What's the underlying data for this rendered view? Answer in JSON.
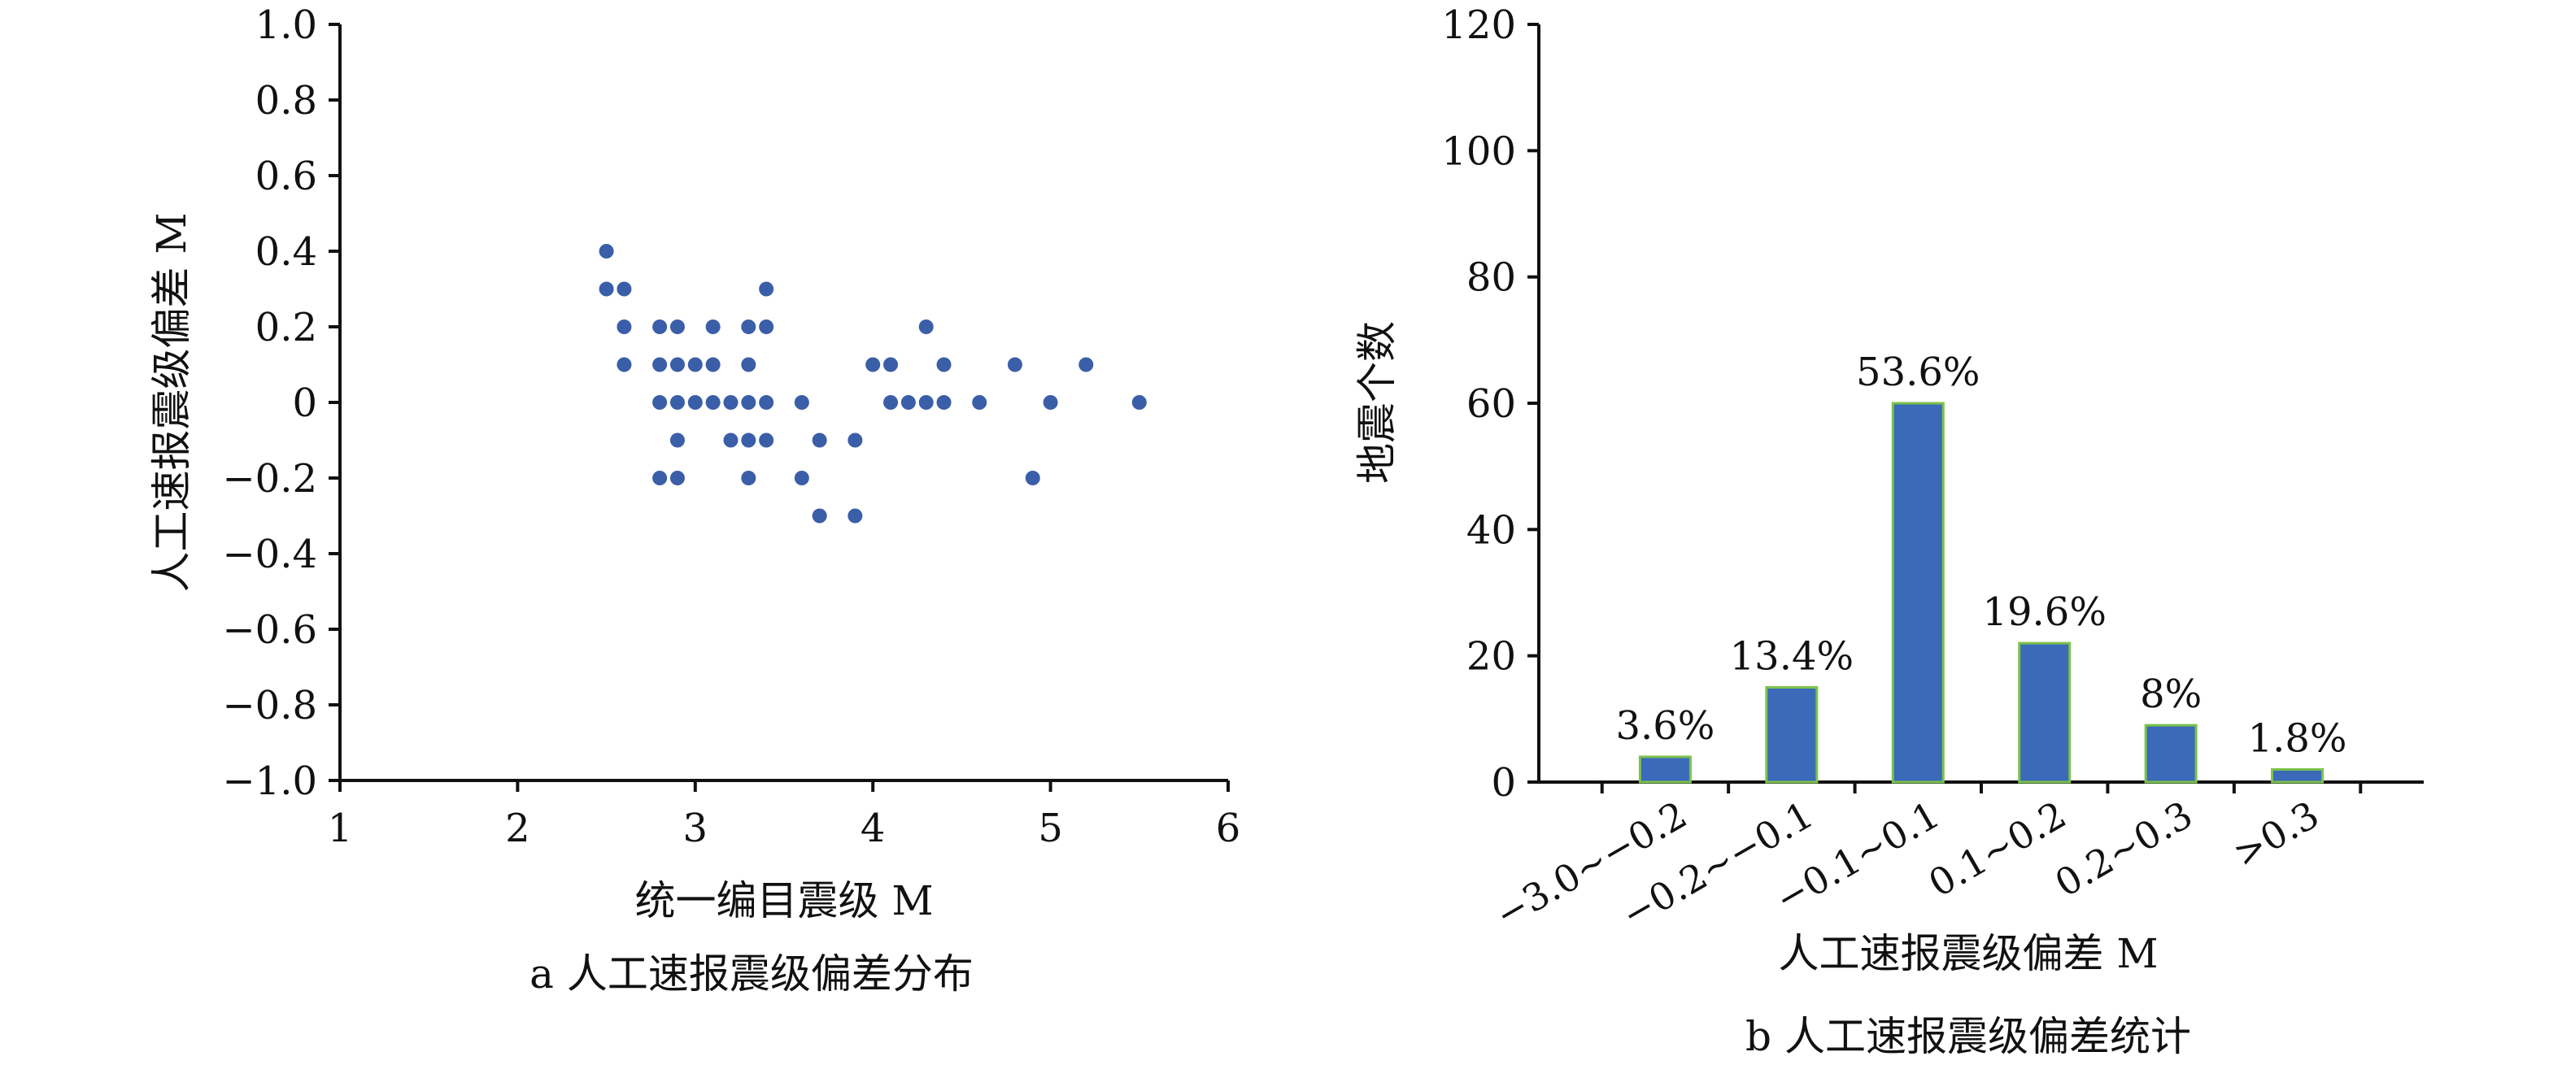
{
  "chart_data": [
    {
      "type": "scatter",
      "title": "",
      "caption": "a 人工速报震级偏差分布",
      "xlabel": "统一编目震级 M",
      "ylabel": "人工速报震级偏差 M",
      "xlim": [
        1,
        6
      ],
      "ylim": [
        -1.0,
        1.0
      ],
      "x_ticks": [
        "1",
        "2",
        "3",
        "4",
        "5",
        "6"
      ],
      "y_ticks": [
        "−1.0",
        "−0.8",
        "−0.6",
        "−0.4",
        "−0.2",
        "0",
        "0.2",
        "0.4",
        "0.6",
        "0.8",
        "1.0"
      ],
      "grid": false,
      "marker_color": "#3b5ea8",
      "points": [
        [
          2.5,
          0.4
        ],
        [
          2.5,
          0.3
        ],
        [
          2.6,
          0.3
        ],
        [
          2.6,
          0.2
        ],
        [
          2.6,
          0.1
        ],
        [
          2.8,
          0.2
        ],
        [
          2.8,
          0.1
        ],
        [
          2.8,
          0.0
        ],
        [
          2.8,
          -0.2
        ],
        [
          2.9,
          0.2
        ],
        [
          2.9,
          0.1
        ],
        [
          2.9,
          0.0
        ],
        [
          2.9,
          -0.1
        ],
        [
          2.9,
          -0.2
        ],
        [
          3.0,
          0.1
        ],
        [
          3.0,
          0.0
        ],
        [
          3.1,
          0.2
        ],
        [
          3.1,
          0.1
        ],
        [
          3.1,
          0.0
        ],
        [
          3.2,
          0.0
        ],
        [
          3.2,
          -0.1
        ],
        [
          3.3,
          0.2
        ],
        [
          3.3,
          0.1
        ],
        [
          3.3,
          0.0
        ],
        [
          3.3,
          -0.1
        ],
        [
          3.3,
          -0.2
        ],
        [
          3.4,
          0.3
        ],
        [
          3.4,
          0.2
        ],
        [
          3.4,
          0.0
        ],
        [
          3.4,
          -0.1
        ],
        [
          3.6,
          0.0
        ],
        [
          3.6,
          -0.2
        ],
        [
          3.7,
          -0.1
        ],
        [
          3.7,
          -0.3
        ],
        [
          3.9,
          -0.1
        ],
        [
          3.9,
          -0.3
        ],
        [
          4.0,
          0.1
        ],
        [
          4.1,
          0.1
        ],
        [
          4.1,
          0.0
        ],
        [
          4.2,
          0.0
        ],
        [
          4.3,
          0.2
        ],
        [
          4.3,
          0.0
        ],
        [
          4.4,
          0.1
        ],
        [
          4.4,
          0.0
        ],
        [
          4.6,
          0.0
        ],
        [
          4.8,
          0.1
        ],
        [
          4.9,
          -0.2
        ],
        [
          5.0,
          0.0
        ],
        [
          5.2,
          0.1
        ],
        [
          5.5,
          0.0
        ]
      ]
    },
    {
      "type": "bar",
      "title": "",
      "caption": "b 人工速报震级偏差统计",
      "xlabel": "人工速报震级偏差 M",
      "ylabel": "地震个数",
      "ylim": [
        0,
        120
      ],
      "y_ticks": [
        "0",
        "20",
        "40",
        "60",
        "80",
        "100",
        "120"
      ],
      "grid": false,
      "bar_color": "#3a6ab8",
      "bar_edge_color": "#7cc24a",
      "categories": [
        "−3.0~−0.2",
        "−0.2~−0.1",
        "−0.1~0.1",
        "0.1~0.2",
        "0.2~0.3",
        ">0.3"
      ],
      "values": [
        4,
        15,
        60,
        22,
        9,
        2
      ],
      "labels": [
        "3.6%",
        "13.4%",
        "53.6%",
        "19.6%",
        "8%",
        "1.8%"
      ]
    }
  ]
}
